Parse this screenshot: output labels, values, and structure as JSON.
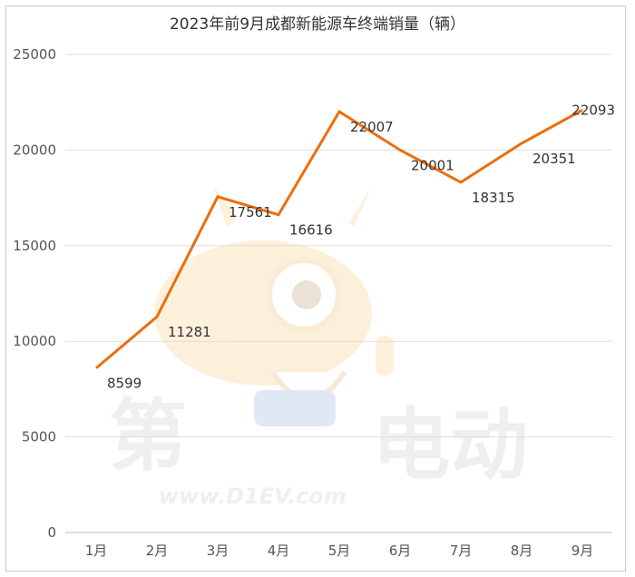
{
  "chart_data": {
    "type": "line",
    "title": "2023年前9月成都新能源车终端销量（辆）",
    "categories": [
      "1月",
      "2月",
      "3月",
      "4月",
      "5月",
      "6月",
      "7月",
      "8月",
      "9月"
    ],
    "series": [
      {
        "values": [
          8599,
          11281,
          17561,
          16616,
          22007,
          20001,
          18315,
          20351,
          22093
        ]
      }
    ],
    "ylim": [
      0,
      25000
    ],
    "yticks": [
      0,
      5000,
      10000,
      15000,
      20000,
      25000
    ],
    "grid": true,
    "line_color": "#ed6d0c"
  },
  "watermark": {
    "brand_text": "第1电动",
    "url_text": "www.D1EV.com"
  }
}
